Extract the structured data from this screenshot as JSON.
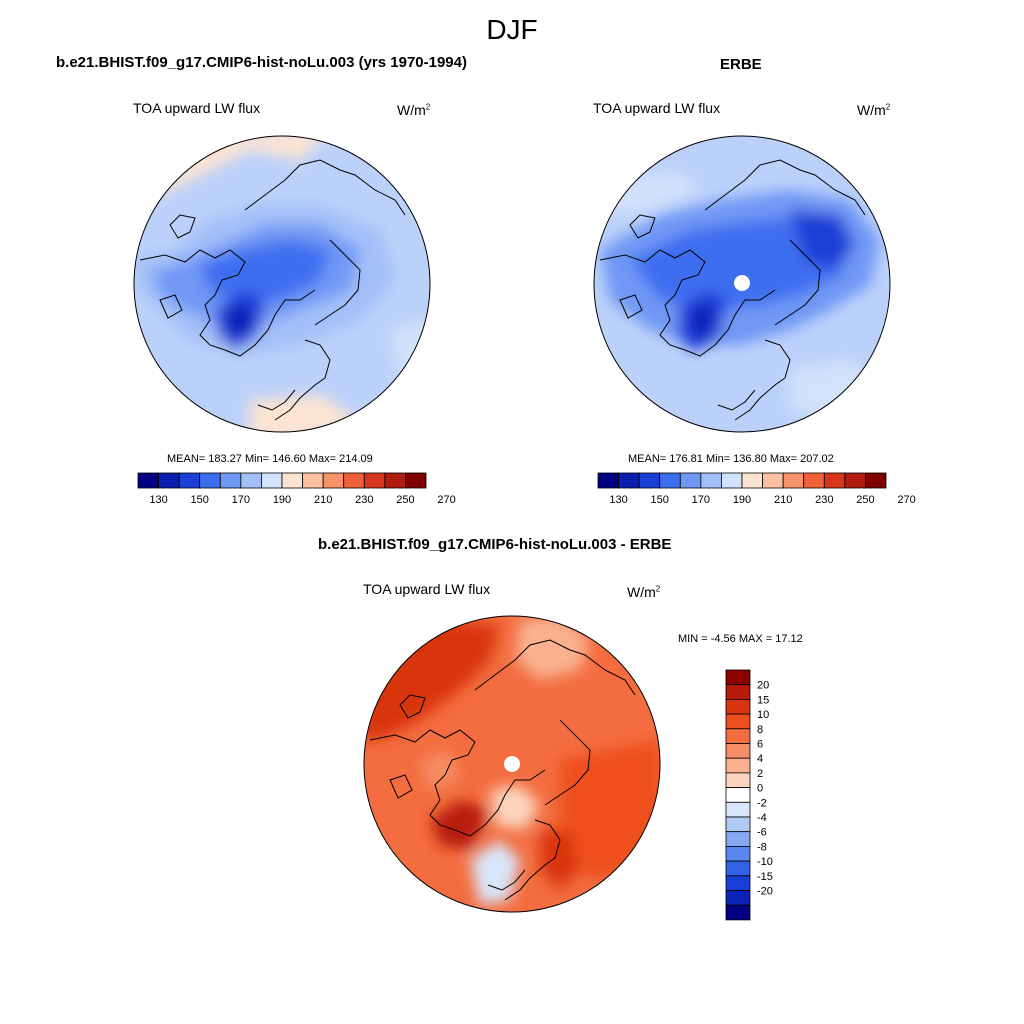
{
  "figure": {
    "season": "DJF",
    "panels": [
      {
        "title": "b.e21.BHIST.f09_g17.CMIP6-hist-noLu.003 (yrs 1970-1994)",
        "variable": "TOA upward LW flux",
        "units_base": "W/m",
        "units_exp": "2",
        "stats": "MEAN= 183.27  Min= 146.60  Max= 214.09",
        "has_pole_hole": false
      },
      {
        "title": "ERBE",
        "variable": "TOA upward LW flux",
        "units_base": "W/m",
        "units_exp": "2",
        "stats": "MEAN= 176.81  Min= 136.80  Max= 207.02",
        "has_pole_hole": true
      }
    ],
    "abs_colorbar": {
      "labels": [
        "130",
        "150",
        "170",
        "190",
        "210",
        "230",
        "250",
        "270"
      ],
      "colors": [
        "#000080",
        "#0a1fb0",
        "#1a3fd6",
        "#3e6ef0",
        "#6f98f5",
        "#a3bff8",
        "#d3e2fb",
        "#fde4d2",
        "#fbc0a0",
        "#f7936a",
        "#f0603a",
        "#d8361c",
        "#b01c10",
        "#800000"
      ]
    },
    "diff_panel": {
      "title": "b.e21.BHIST.f09_g17.CMIP6-hist-noLu.003 - ERBE",
      "variable": "TOA upward LW flux",
      "units_base": "W/m",
      "units_exp": "2",
      "minmax": "MIN =  -4.56 MAX =  17.12",
      "colorbar_labels": [
        "20",
        "15",
        "10",
        "8",
        "6",
        "4",
        "2",
        "0",
        "-2",
        "-4",
        "-6",
        "-8",
        "-10",
        "-15",
        "-20"
      ],
      "colorbar_colors": [
        "#8b0000",
        "#b81a0a",
        "#d93410",
        "#ee4f1e",
        "#f36d40",
        "#f68e65",
        "#f9b18f",
        "#fcd4bd",
        "#ffffff",
        "#d8e6fa",
        "#b0caf6",
        "#86aaf2",
        "#5a87ee",
        "#3362e8",
        "#1a3fd6",
        "#0a22b5",
        "#000080"
      ]
    }
  }
}
